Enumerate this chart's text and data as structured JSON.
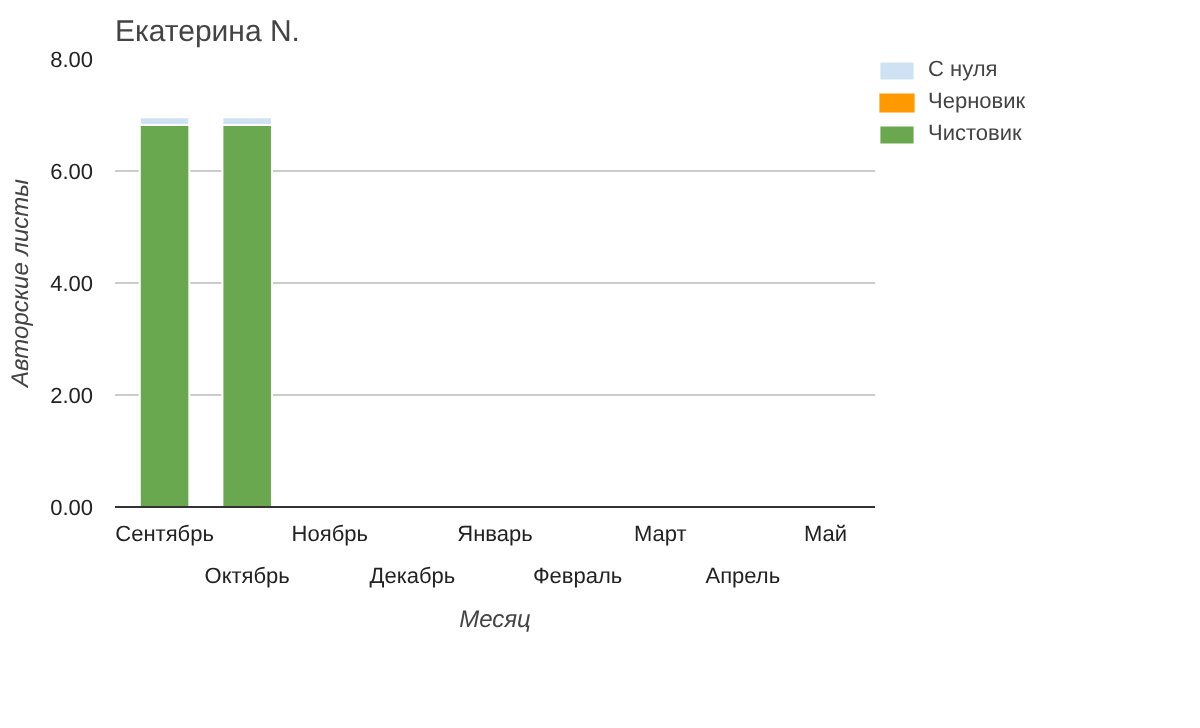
{
  "chart_data": {
    "type": "bar",
    "stacked": true,
    "title": "Екатерина N.",
    "xlabel": "Месяц",
    "ylabel": "Авторские листы",
    "categories": [
      "Сентябрь",
      "Октябрь",
      "Ноябрь",
      "Декабрь",
      "Январь",
      "Февраль",
      "Март",
      "Апрель",
      "Май"
    ],
    "series": [
      {
        "name": "Чистовик",
        "color": "#6aa84f",
        "values": [
          6.82,
          6.82,
          0,
          0,
          0,
          0,
          0,
          0,
          0
        ]
      },
      {
        "name": "Черновик",
        "color": "#ff9900",
        "values": [
          0,
          0,
          0,
          0,
          0,
          0,
          0,
          0,
          0
        ]
      },
      {
        "name": "С нуля",
        "color": "#cfe2f3",
        "values": [
          0.14,
          0.14,
          0,
          0,
          0,
          0,
          0,
          0,
          0
        ]
      }
    ],
    "ylim": [
      0,
      8
    ],
    "yticks": [
      {
        "value": 0,
        "label": "0.00"
      },
      {
        "value": 2,
        "label": "2.00"
      },
      {
        "value": 4,
        "label": "4.00"
      },
      {
        "value": 6,
        "label": "6.00"
      },
      {
        "value": 8,
        "label": "8.00"
      }
    ],
    "grid": "y",
    "legend": "right"
  }
}
